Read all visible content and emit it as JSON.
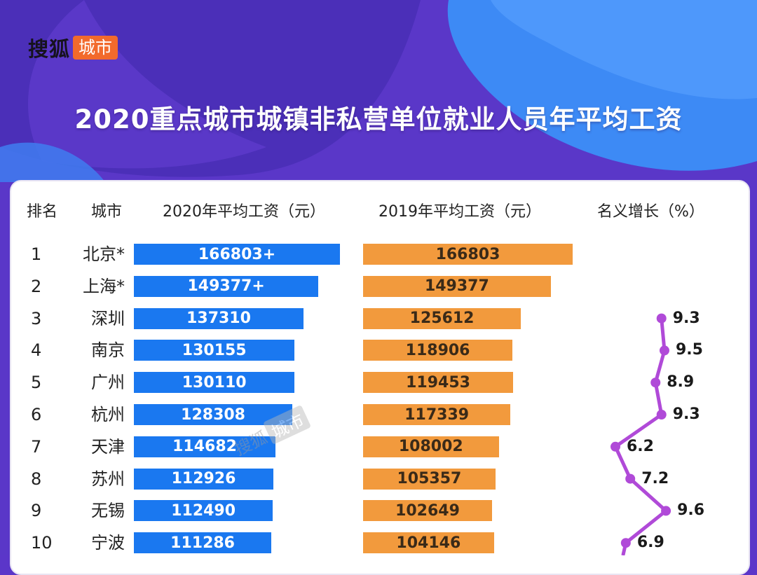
{
  "brand": {
    "name": "搜狐",
    "badge": "城市"
  },
  "watermark": {
    "name": "搜狐",
    "badge": "城市"
  },
  "colors": {
    "bar2020": "#1a78f0",
    "bar2019": "#f29a3d",
    "growth_line": "#b04ad8",
    "badge": "#f26a2c"
  },
  "chart_data": {
    "type": "table",
    "title": "2020重点城市城镇非私营单位就业人员年平均工资",
    "columns": [
      "排名",
      "城市",
      "2020年平均工资（元）",
      "2019年平均工资（元）",
      "名义增长（%）"
    ],
    "rows": [
      {
        "rank": "1",
        "city": "北京*",
        "wage2020": 166803,
        "wage2020_label": "166803+",
        "wage2019": 166803,
        "wage2019_label": "166803",
        "growth": null,
        "growth_label": ""
      },
      {
        "rank": "2",
        "city": "上海*",
        "wage2020": 149377,
        "wage2020_label": "149377+",
        "wage2019": 149377,
        "wage2019_label": "149377",
        "growth": null,
        "growth_label": ""
      },
      {
        "rank": "3",
        "city": "深圳",
        "wage2020": 137310,
        "wage2020_label": "137310",
        "wage2019": 125612,
        "wage2019_label": "125612",
        "growth": 9.3,
        "growth_label": "9.3"
      },
      {
        "rank": "4",
        "city": "南京",
        "wage2020": 130155,
        "wage2020_label": "130155",
        "wage2019": 118906,
        "wage2019_label": "118906",
        "growth": 9.5,
        "growth_label": "9.5"
      },
      {
        "rank": "5",
        "city": "广州",
        "wage2020": 130110,
        "wage2020_label": "130110",
        "wage2019": 119453,
        "wage2019_label": "119453",
        "growth": 8.9,
        "growth_label": "8.9"
      },
      {
        "rank": "6",
        "city": "杭州",
        "wage2020": 128308,
        "wage2020_label": "128308",
        "wage2019": 117339,
        "wage2019_label": "117339",
        "growth": 9.3,
        "growth_label": "9.3"
      },
      {
        "rank": "7",
        "city": "天津",
        "wage2020": 114682,
        "wage2020_label": "114682",
        "wage2019": 108002,
        "wage2019_label": "108002",
        "growth": 6.2,
        "growth_label": "6.2"
      },
      {
        "rank": "8",
        "city": "苏州",
        "wage2020": 112926,
        "wage2020_label": "112926",
        "wage2019": 105357,
        "wage2019_label": "105357",
        "growth": 7.2,
        "growth_label": "7.2"
      },
      {
        "rank": "9",
        "city": "无锡",
        "wage2020": 112490,
        "wage2020_label": "112490",
        "wage2019": 102649,
        "wage2019_label": "102649",
        "growth": 9.6,
        "growth_label": "9.6"
      },
      {
        "rank": "10",
        "city": "宁波",
        "wage2020": 111286,
        "wage2020_label": "111286",
        "wage2019": 104146,
        "wage2019_label": "104146",
        "growth": 6.9,
        "growth_label": "6.9"
      }
    ]
  }
}
